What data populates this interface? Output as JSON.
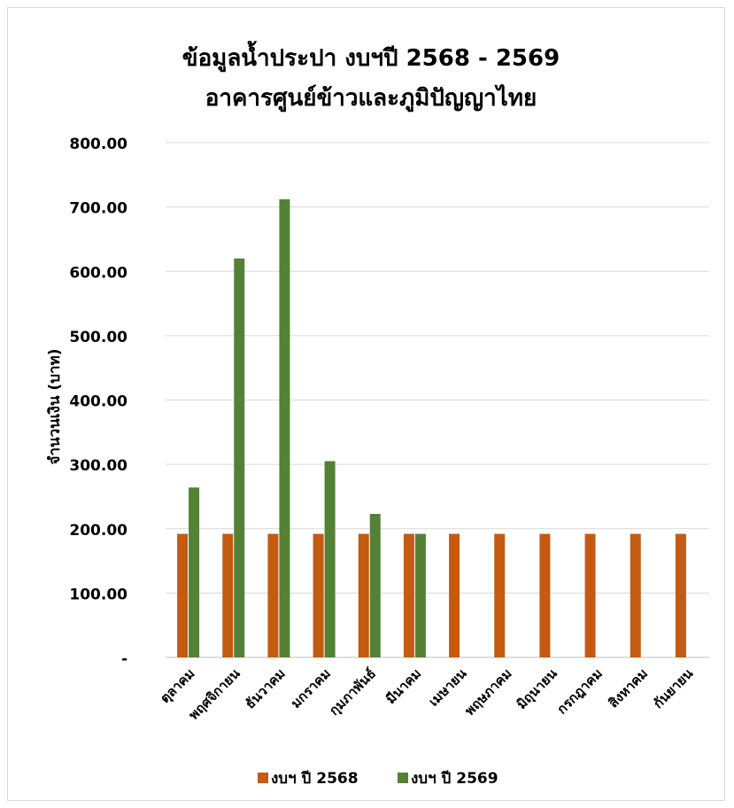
{
  "chart_data": {
    "type": "bar",
    "title": "ข้อมูลน้ำประปา งบฯปี 2568 - 2569",
    "subtitle": "อาคารศูนย์ข้าวและภูมิปัญญาไทย",
    "xlabel": "",
    "ylabel": "จำนวนเงิน (บาท)",
    "ylim": [
      0,
      800
    ],
    "yticks": [
      {
        "value": 0,
        "label": "-"
      },
      {
        "value": 100,
        "label": "100.00"
      },
      {
        "value": 200,
        "label": "200.00"
      },
      {
        "value": 300,
        "label": "300.00"
      },
      {
        "value": 400,
        "label": "400.00"
      },
      {
        "value": 500,
        "label": "500.00"
      },
      {
        "value": 600,
        "label": "600.00"
      },
      {
        "value": 700,
        "label": "700.00"
      },
      {
        "value": 800,
        "label": "800.00"
      }
    ],
    "grid": true,
    "legend_position": "bottom",
    "categories": [
      "ตุลาคม",
      "พฤศจิกายน",
      "ธันวาคม",
      "มกราคม",
      "กุมภาพันธ์",
      "มีนาคม",
      "เมษายน",
      "พฤษภาคม",
      "มิถุนายน",
      "กรกฎาคม",
      "สิงหาคม",
      "กันยายน"
    ],
    "series": [
      {
        "name": "งบฯ ปี 2568",
        "color": "#C55A11",
        "values": [
          192,
          192,
          192,
          192,
          192,
          192,
          192,
          192,
          192,
          192,
          192,
          192
        ]
      },
      {
        "name": "งบฯ ปี 2569",
        "color": "#548235",
        "values": [
          264,
          620,
          712,
          305,
          223,
          192,
          null,
          null,
          null,
          null,
          null,
          null
        ]
      }
    ]
  }
}
